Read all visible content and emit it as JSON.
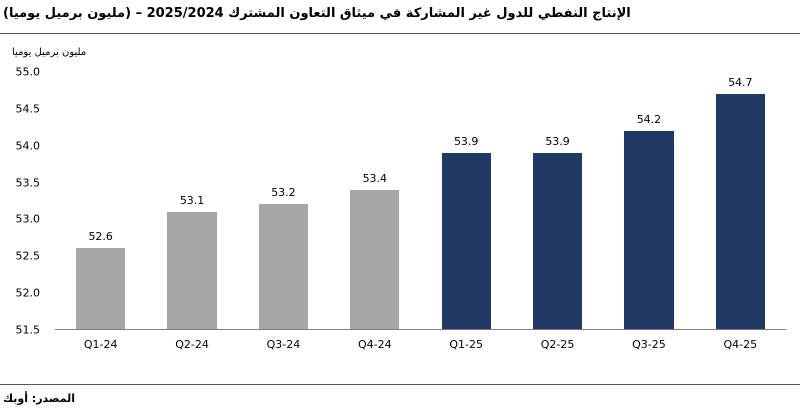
{
  "title": "الإنتاج النفطي للدول غير المشاركة في ميثاق التعاون المشترك 2025/2024 – (مليون برميل يوميا)",
  "source": "المصدر: أوبك",
  "chart_data": {
    "type": "bar",
    "title": "الإنتاج النفطي للدول غير المشاركة في ميثاق التعاون المشترك 2024/2025 (مليون برميل يوميا)",
    "unit_label": "مليون برميل يوميا",
    "categories": [
      "Q1-24",
      "Q2-24",
      "Q3-24",
      "Q4-24",
      "Q1-25",
      "Q2-25",
      "Q3-25",
      "Q4-25"
    ],
    "values": [
      52.6,
      53.1,
      53.2,
      53.4,
      53.9,
      53.9,
      54.2,
      54.7
    ],
    "colors": [
      "#a6a6a6",
      "#a6a6a6",
      "#a6a6a6",
      "#a6a6a6",
      "#1f3864",
      "#1f3864",
      "#1f3864",
      "#1f3864"
    ],
    "ylim": [
      51.5,
      55.0
    ],
    "yticks": [
      "55.0",
      "54.5",
      "54.0",
      "53.5",
      "53.0",
      "52.5",
      "52.0",
      "51.5"
    ],
    "ylabel": "مليون برميل يوميا",
    "xlabel": "",
    "grid": false,
    "legend": "none",
    "color_2024_bars": "#a6a6a6",
    "color_2025_bars": "#1f3864"
  }
}
